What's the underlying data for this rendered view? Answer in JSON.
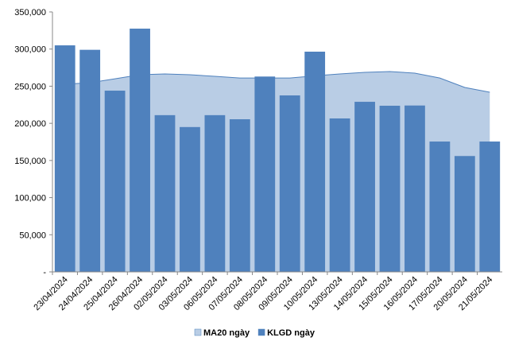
{
  "chart_data": {
    "type": "bar",
    "categories": [
      "23/04/2024",
      "24/04/2024",
      "25/04/2024",
      "26/04/2024",
      "02/05/2024",
      "03/05/2024",
      "06/05/2024",
      "07/05/2024",
      "08/05/2024",
      "09/05/2024",
      "10/05/2024",
      "13/05/2024",
      "14/05/2024",
      "15/05/2024",
      "16/05/2024",
      "17/05/2024",
      "20/05/2024",
      "21/05/2024"
    ],
    "series": [
      {
        "name": "MA20 ngày",
        "type": "area",
        "color": "#b9cde5",
        "values": [
          252600,
          254700,
          260000,
          265400,
          266500,
          265400,
          263300,
          261000,
          261000,
          261000,
          264000,
          266500,
          268600,
          269700,
          267600,
          261000,
          248300,
          241900
        ]
      },
      {
        "name": "KLGD ngày",
        "type": "bar",
        "color": "#4f81bd",
        "values": [
          305000,
          299000,
          244000,
          327500,
          211000,
          195000,
          211000,
          205500,
          263000,
          237600,
          296500,
          206600,
          229000,
          223700,
          224000,
          175500,
          156000,
          175500
        ]
      }
    ],
    "ylim": [
      0,
      350000
    ],
    "yticks": [
      {
        "value": 0,
        "label": "-"
      },
      {
        "value": 50000,
        "label": "50,000"
      },
      {
        "value": 100000,
        "label": "100,000"
      },
      {
        "value": 150000,
        "label": "150,000"
      },
      {
        "value": 200000,
        "label": "200,000"
      },
      {
        "value": 250000,
        "label": "250,000"
      },
      {
        "value": 300000,
        "label": "300,000"
      },
      {
        "value": 350000,
        "label": "350,000"
      }
    ],
    "legend": "bottom"
  }
}
